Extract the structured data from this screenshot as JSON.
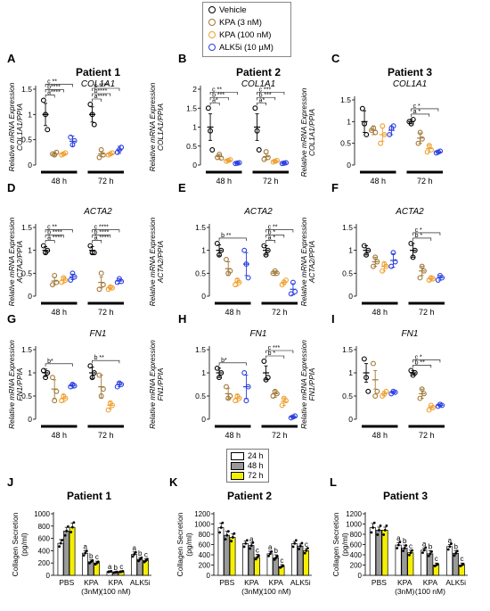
{
  "legend_top": {
    "items": [
      {
        "label": "Vehicle",
        "color": "#000000"
      },
      {
        "label": "KPA (3 nM)",
        "color": "#a07838"
      },
      {
        "label": "KPA (100 nM)",
        "color": "#f0a030"
      },
      {
        "label": "ALK5i (10 µM)",
        "color": "#2a3fe0"
      }
    ]
  },
  "legend_bottom": {
    "items": [
      {
        "label": "24 h",
        "color": "#ffffff"
      },
      {
        "label": "48 h",
        "color": "#9a9a9a"
      },
      {
        "label": "72 h",
        "color": "#f5ef00"
      }
    ]
  },
  "chart_data": [
    {
      "panel": "A",
      "type": "scatter",
      "title": "Patient 1",
      "gene": "COL1A1",
      "ylabel": "Relative mRNA Expression COL1A1/PPIA",
      "ylim": [
        0,
        1.5
      ],
      "ticks": [
        0,
        0.5,
        1,
        1.5
      ],
      "groups": [
        "48 h",
        "72 h"
      ],
      "treatments": [
        "Vehicle",
        "KPA (3 nM)",
        "KPA (100 nM)",
        "ALK5i (10 µM)"
      ],
      "means": [
        [
          1.0,
          0.22,
          0.22,
          0.47
        ],
        [
          1.0,
          0.22,
          0.22,
          0.3
        ]
      ],
      "sem": [
        [
          0.22,
          0.04,
          0.03,
          0.1
        ],
        [
          0.15,
          0.05,
          0.03,
          0.07
        ]
      ],
      "points": [
        [
          [
            1.28,
            1.0,
            0.7
          ],
          [
            0.22,
            0.2,
            0.25
          ],
          [
            0.2,
            0.22,
            0.24
          ],
          [
            0.55,
            0.4,
            0.48
          ]
        ],
        [
          [
            1.2,
            1.0,
            0.8
          ],
          [
            0.15,
            0.3,
            0.2
          ],
          [
            0.2,
            0.22,
            0.24
          ],
          [
            0.25,
            0.3,
            0.35
          ]
        ]
      ],
      "sig": [
        [
          "c **",
          "b****",
          "a****"
        ],
        [
          "c ****",
          "b****",
          "a****"
        ]
      ]
    },
    {
      "panel": "B",
      "type": "scatter",
      "title": "Patient 2",
      "gene": "COL1A1",
      "ylabel": "Relative mRNA Expression COL1A1/PPIA",
      "ylim": [
        0,
        2.0
      ],
      "ticks": [
        0,
        0.5,
        1,
        1.5,
        2
      ],
      "groups": [
        "48 h",
        "72 h"
      ],
      "treatments": [
        "Vehicle",
        "KPA (3 nM)",
        "KPA (100 nM)",
        "ALK5i (10 µM)"
      ],
      "means": [
        [
          1.0,
          0.22,
          0.12,
          0.05
        ],
        [
          1.0,
          0.22,
          0.1,
          0.05
        ]
      ],
      "sem": [
        [
          0.35,
          0.06,
          0.02,
          0.02
        ],
        [
          0.35,
          0.08,
          0.03,
          0.02
        ]
      ],
      "points": [
        [
          [
            1.5,
            0.9,
            0.4
          ],
          [
            0.2,
            0.28,
            0.18
          ],
          [
            0.1,
            0.12,
            0.14
          ],
          [
            0.04,
            0.05,
            0.06
          ]
        ],
        [
          [
            1.5,
            0.9,
            0.4
          ],
          [
            0.15,
            0.35,
            0.2
          ],
          [
            0.08,
            0.1,
            0.12
          ],
          [
            0.04,
            0.05,
            0.06
          ]
        ]
      ],
      "sig": [
        [
          "c **",
          "b ***",
          "a*"
        ],
        [
          "c ***",
          "b ***",
          "a*"
        ]
      ]
    },
    {
      "panel": "C",
      "type": "scatter",
      "title": "Patient 3",
      "gene": "COL1A1",
      "ylabel": "Relative mRNA Expression COL1A1/PPIA",
      "ylim": [
        0,
        1.5
      ],
      "ticks": [
        0,
        0.5,
        1,
        1.5
      ],
      "groups": [
        "48 h",
        "72 h"
      ],
      "treatments": [
        "Vehicle",
        "KPA (3 nM)",
        "KPA (100 nM)",
        "ALK5i (10 µM)"
      ],
      "means": [
        [
          1.0,
          0.8,
          0.7,
          0.8
        ],
        [
          1.0,
          0.62,
          0.38,
          0.3
        ]
      ],
      "sem": [
        [
          0.25,
          0.1,
          0.15,
          0.1
        ],
        [
          0.05,
          0.12,
          0.08,
          0.03
        ]
      ],
      "points": [
        [
          [
            1.3,
            0.95,
            0.7
          ],
          [
            0.8,
            0.85,
            0.75
          ],
          [
            0.5,
            0.9,
            0.7
          ],
          [
            0.7,
            0.85,
            0.9
          ]
        ],
        [
          [
            1.0,
            0.95,
            1.05
          ],
          [
            0.5,
            0.75,
            0.6
          ],
          [
            0.3,
            0.45,
            0.35
          ],
          [
            0.28,
            0.3,
            0.32
          ]
        ]
      ],
      "sig": [
        [],
        [
          "c *",
          "a *"
        ]
      ]
    },
    {
      "panel": "D",
      "type": "scatter",
      "title": "",
      "gene": "ACTA2",
      "ylabel": "Relative mRNA Expression ACTA2/PPIA",
      "ylim": [
        0,
        1.5
      ],
      "ticks": [
        0,
        0.5,
        1,
        1.5
      ],
      "groups": [
        "48 h",
        "72 h"
      ],
      "treatments": [
        "Vehicle",
        "KPA (3 nM)",
        "KPA (100 nM)",
        "ALK5i (10 µM)"
      ],
      "means": [
        [
          1.0,
          0.33,
          0.35,
          0.42
        ],
        [
          1.0,
          0.3,
          0.18,
          0.33
        ]
      ],
      "sem": [
        [
          0.08,
          0.08,
          0.06,
          0.06
        ],
        [
          0.08,
          0.12,
          0.04,
          0.05
        ]
      ],
      "points": [
        [
          [
            1.1,
            0.95,
            1.0
          ],
          [
            0.25,
            0.45,
            0.3
          ],
          [
            0.3,
            0.4,
            0.35
          ],
          [
            0.35,
            0.5,
            0.42
          ]
        ],
        [
          [
            1.1,
            0.95,
            0.95
          ],
          [
            0.15,
            0.5,
            0.25
          ],
          [
            0.15,
            0.2,
            0.18
          ],
          [
            0.3,
            0.38,
            0.32
          ]
        ]
      ],
      "sig": [
        [
          "c **",
          "b ****",
          "a ****"
        ],
        [
          "c ****",
          "b ****",
          "a ****"
        ]
      ]
    },
    {
      "panel": "E",
      "type": "scatter",
      "title": "",
      "gene": "ACTA2",
      "ylabel": "Relative mRNA Expression ACTA2/PPIA",
      "ylim": [
        0,
        1.5
      ],
      "ticks": [
        0,
        0.5,
        1,
        1.5
      ],
      "groups": [
        "48 h",
        "72 h"
      ],
      "treatments": [
        "Vehicle",
        "KPA (3 nM)",
        "KPA (100 nM)",
        "ALK5i (10 µM)"
      ],
      "means": [
        [
          1.0,
          0.6,
          0.3,
          0.7
        ],
        [
          1.0,
          0.5,
          0.3,
          0.15
        ]
      ],
      "sem": [
        [
          0.12,
          0.15,
          0.08,
          0.25
        ],
        [
          0.1,
          0.05,
          0.05,
          0.12
        ]
      ],
      "points": [
        [
          [
            1.15,
            0.9,
            1.0
          ],
          [
            0.8,
            0.5,
            0.55
          ],
          [
            0.25,
            0.35,
            0.3
          ],
          [
            1.0,
            0.7,
            0.4
          ]
        ],
        [
          [
            1.1,
            0.9,
            1.0
          ],
          [
            0.5,
            0.55,
            0.5
          ],
          [
            0.25,
            0.3,
            0.35
          ],
          [
            0.05,
            0.3,
            0.1
          ]
        ]
      ],
      "sig": [
        [
          "b **"
        ],
        [
          "c **",
          "b *",
          "a *"
        ]
      ]
    },
    {
      "panel": "F",
      "type": "scatter",
      "title": "",
      "gene": "ACTA2",
      "ylabel": "Relative mRNA Expression ACTA2/PPIA",
      "ylim": [
        0,
        1.5
      ],
      "ticks": [
        0,
        0.5,
        1,
        1.5
      ],
      "groups": [
        "48 h",
        "72 h"
      ],
      "treatments": [
        "Vehicle",
        "KPA (3 nM)",
        "KPA (100 nM)",
        "ALK5i (10 µM)"
      ],
      "means": [
        [
          1.0,
          0.75,
          0.65,
          0.78
        ],
        [
          1.0,
          0.55,
          0.38,
          0.4
        ]
      ],
      "sem": [
        [
          0.1,
          0.1,
          0.1,
          0.15
        ],
        [
          0.15,
          0.1,
          0.05,
          0.05
        ]
      ],
      "points": [
        [
          [
            1.1,
            0.9,
            1.0
          ],
          [
            0.65,
            0.85,
            0.75
          ],
          [
            0.55,
            0.7,
            0.65
          ],
          [
            0.65,
            0.95,
            0.75
          ]
        ],
        [
          [
            1.15,
            0.85,
            1.0
          ],
          [
            0.4,
            0.65,
            0.55
          ],
          [
            0.35,
            0.4,
            0.38
          ],
          [
            0.35,
            0.45,
            0.4
          ]
        ]
      ],
      "sig": [
        [],
        [
          "c *",
          "b *"
        ]
      ]
    },
    {
      "panel": "G",
      "type": "scatter",
      "title": "",
      "gene": "FN1",
      "ylabel": "Relative mRNA Expression FN1/PPIA",
      "ylim": [
        0,
        1.5
      ],
      "ticks": [
        0,
        0.5,
        1,
        1.5
      ],
      "groups": [
        "48 h",
        "72 h"
      ],
      "treatments": [
        "Vehicle",
        "KPA (3 nM)",
        "KPA (100 nM)",
        "ALK5i (10 µM)"
      ],
      "means": [
        [
          1.0,
          0.65,
          0.45,
          0.72
        ],
        [
          1.0,
          0.7,
          0.3,
          0.75
        ]
      ],
      "sem": [
        [
          0.08,
          0.2,
          0.08,
          0.05
        ],
        [
          0.12,
          0.25,
          0.08,
          0.05
        ]
      ],
      "points": [
        [
          [
            1.05,
            0.9,
            1.0
          ],
          [
            0.9,
            0.4,
            0.6
          ],
          [
            0.4,
            0.5,
            0.45
          ],
          [
            0.7,
            0.75,
            0.72
          ]
        ],
        [
          [
            1.15,
            0.9,
            1.0
          ],
          [
            0.95,
            0.5,
            0.65
          ],
          [
            0.2,
            0.35,
            0.3
          ],
          [
            0.7,
            0.78,
            0.75
          ]
        ]
      ],
      "sig": [
        [
          "b*"
        ],
        [
          "b **"
        ]
      ]
    },
    {
      "panel": "H",
      "type": "scatter",
      "title": "",
      "gene": "FN1",
      "ylabel": "Relative mRNA Expression FN1/PPIA",
      "ylim": [
        0,
        1.5
      ],
      "ticks": [
        0,
        0.5,
        1,
        1.5
      ],
      "groups": [
        "48 h",
        "72 h"
      ],
      "treatments": [
        "Vehicle",
        "KPA (3 nM)",
        "KPA (100 nM)",
        "ALK5i (10 µM)"
      ],
      "means": [
        [
          1.0,
          0.55,
          0.45,
          0.7
        ],
        [
          1.0,
          0.55,
          0.38,
          0.05
        ]
      ],
      "sem": [
        [
          0.1,
          0.12,
          0.08,
          0.25
        ],
        [
          0.15,
          0.08,
          0.08,
          0.02
        ]
      ],
      "points": [
        [
          [
            1.1,
            0.9,
            1.0
          ],
          [
            0.7,
            0.45,
            0.5
          ],
          [
            0.4,
            0.5,
            0.45
          ],
          [
            1.0,
            0.4,
            0.7
          ]
        ],
        [
          [
            1.25,
            0.85,
            0.9
          ],
          [
            0.5,
            0.6,
            0.55
          ],
          [
            0.3,
            0.45,
            0.4
          ],
          [
            0.03,
            0.05,
            0.07
          ]
        ]
      ],
      "sig": [
        [
          "b*"
        ],
        [
          "c ***",
          "b *"
        ]
      ]
    },
    {
      "panel": "I",
      "type": "scatter",
      "title": "",
      "gene": "FN1",
      "ylabel": "Relative mRNA Expression FN1/PPIA",
      "ylim": [
        0,
        1.5
      ],
      "ticks": [
        0,
        0.5,
        1,
        1.5
      ],
      "groups": [
        "48 h",
        "72 h"
      ],
      "treatments": [
        "Vehicle",
        "KPA (3 nM)",
        "KPA (100 nM)",
        "ALK5i (10 µM)"
      ],
      "means": [
        [
          1.0,
          0.85,
          0.55,
          0.58
        ],
        [
          1.0,
          0.55,
          0.25,
          0.3
        ]
      ],
      "sem": [
        [
          0.2,
          0.2,
          0.05,
          0.03
        ],
        [
          0.05,
          0.1,
          0.04,
          0.03
        ]
      ],
      "points": [
        [
          [
            1.3,
            0.9,
            0.6
          ],
          [
            1.2,
            0.5,
            0.6
          ],
          [
            0.5,
            0.55,
            0.6
          ],
          [
            0.55,
            0.6,
            0.58
          ]
        ],
        [
          [
            1.05,
            0.95,
            1.0
          ],
          [
            0.45,
            0.65,
            0.55
          ],
          [
            0.2,
            0.3,
            0.25
          ],
          [
            0.28,
            0.32,
            0.3
          ]
        ]
      ],
      "sig": [
        [],
        [
          "c *",
          "b **"
        ]
      ]
    },
    {
      "panel": "J",
      "type": "bar",
      "title": "Patient 1",
      "ylabel": "Collagen Secretion (pg/ml)",
      "ylim": [
        0,
        1000
      ],
      "ticks": [
        0,
        200,
        400,
        600,
        800,
        1000
      ],
      "categories": [
        "PBS",
        "KPA (3nM)",
        "KPA (100 nM)",
        "ALK5i"
      ],
      "series": [
        "24 h",
        "48 h",
        "72 h"
      ],
      "values": [
        [
          520,
          720,
          780
        ],
        [
          360,
          220,
          200
        ],
        [
          60,
          50,
          60
        ],
        [
          340,
          260,
          240
        ]
      ],
      "sem": [
        [
          60,
          60,
          70
        ],
        [
          40,
          30,
          30
        ],
        [
          15,
          10,
          15
        ],
        [
          40,
          30,
          30
        ]
      ],
      "letters": [
        [
          "",
          "",
          ""
        ],
        [
          "a",
          "b",
          "c"
        ],
        [
          "a",
          "b",
          "c"
        ],
        [
          "a",
          "b",
          "c"
        ]
      ]
    },
    {
      "panel": "K",
      "type": "bar",
      "title": "Patient 2",
      "ylabel": "Collagen Secretion (pg/ml)",
      "ylim": [
        0,
        1200
      ],
      "ticks": [
        0,
        200,
        400,
        600,
        800,
        1000,
        1200
      ],
      "categories": [
        "PBS",
        "KPA (3nM)",
        "KPA (100 nM)",
        "ALK5i"
      ],
      "series": [
        "24 h",
        "48 h",
        "72 h"
      ],
      "values": [
        [
          930,
          780,
          740
        ],
        [
          620,
          580,
          350
        ],
        [
          420,
          340,
          170
        ],
        [
          620,
          570,
          480
        ]
      ],
      "sem": [
        [
          90,
          80,
          70
        ],
        [
          50,
          50,
          60
        ],
        [
          50,
          60,
          40
        ],
        [
          40,
          40,
          40
        ]
      ],
      "letters": [
        [
          "",
          "",
          ""
        ],
        [
          "",
          "a",
          "c"
        ],
        [
          "a",
          "b",
          "c"
        ],
        [
          "",
          "",
          "c"
        ]
      ]
    },
    {
      "panel": "L",
      "type": "bar",
      "title": "Patient 3",
      "ylabel": "Collagen Secretion (pg/ml)",
      "ylim": [
        0,
        1200
      ],
      "ticks": [
        0,
        200,
        400,
        600,
        800,
        1000,
        1200
      ],
      "categories": [
        "PBS",
        "KPA (3nM)",
        "KPA (100 nM)",
        "ALK5i"
      ],
      "series": [
        "24 h",
        "48 h",
        "72 h"
      ],
      "values": [
        [
          930,
          880,
          880
        ],
        [
          590,
          530,
          440
        ],
        [
          490,
          420,
          200
        ],
        [
          560,
          430,
          200
        ]
      ],
      "sem": [
        [
          80,
          60,
          60
        ],
        [
          50,
          60,
          50
        ],
        [
          40,
          60,
          40
        ],
        [
          40,
          50,
          40
        ]
      ],
      "letters": [
        [
          "",
          "",
          ""
        ],
        [
          "a",
          "b",
          "c"
        ],
        [
          "a",
          "b",
          "c"
        ],
        [
          "a",
          "b",
          "c"
        ]
      ]
    }
  ]
}
